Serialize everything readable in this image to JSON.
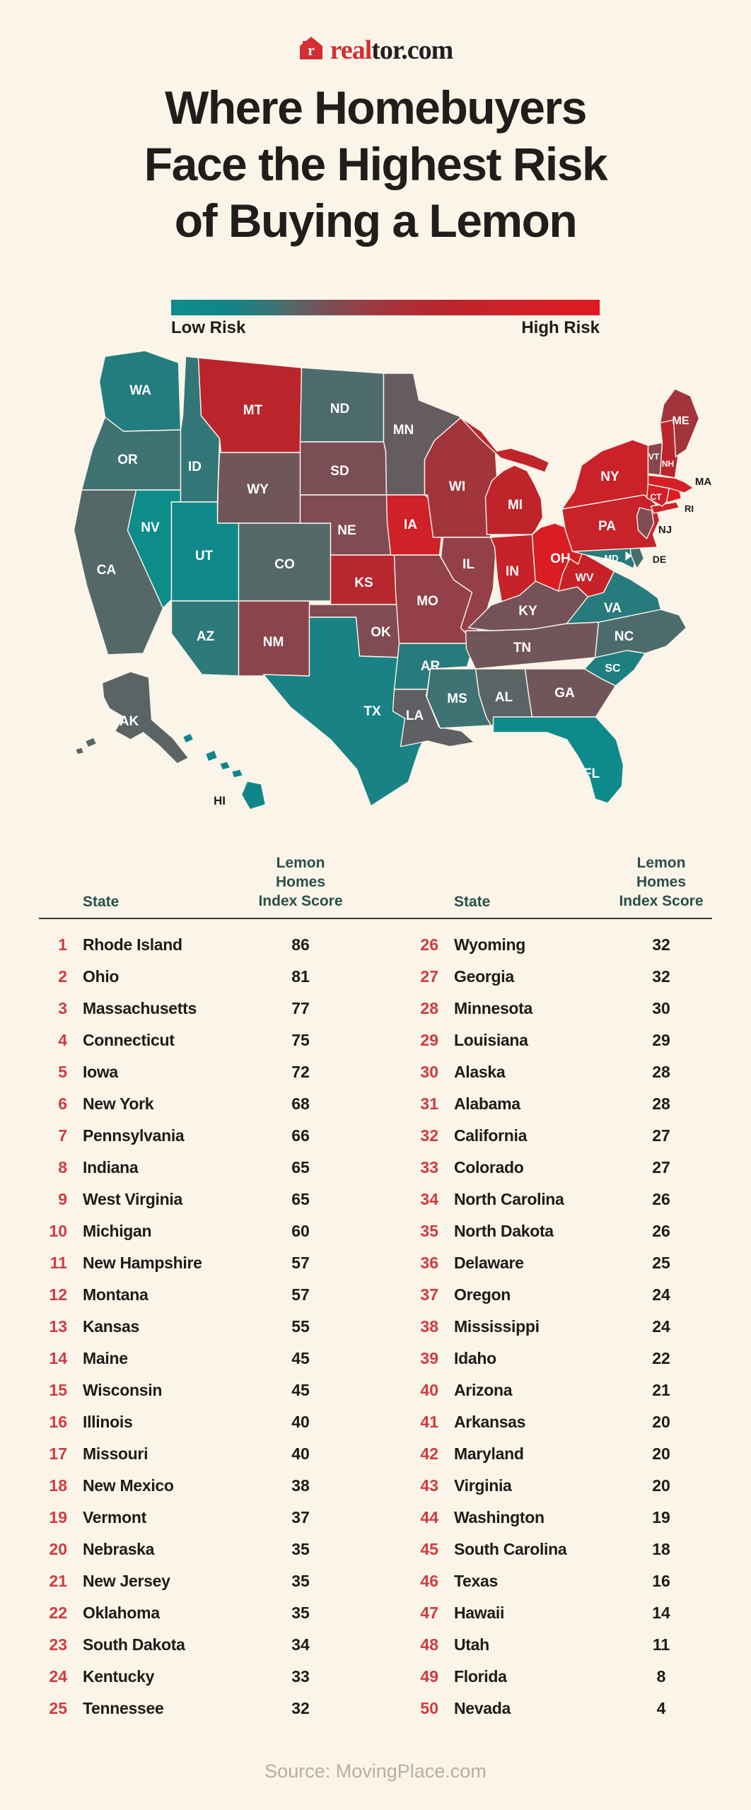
{
  "colors": {
    "background": "#FAF4E9",
    "title": "#201D1B",
    "logo_red": "#D42D33",
    "logo_dark": "#231F20",
    "rank_red": "#D13B40",
    "header_green": "#2B4F4A",
    "text_black": "#1E1B19",
    "divider": "#3B3734",
    "source_gray": "#B7AFA3",
    "map_label_white": "#FFFFFF"
  },
  "logo": {
    "icon": "realtor-house-icon",
    "brand_red_part": "real",
    "brand_dark_part": "tor.com"
  },
  "title": {
    "lines": [
      "Where Homebuyers",
      "Face the Highest Risk",
      "of Buying a Lemon"
    ]
  },
  "legend": {
    "low_label": "Low Risk",
    "high_label": "High Risk",
    "scale": [
      [
        4,
        "#0E8C8C"
      ],
      [
        14,
        "#10868A"
      ],
      [
        19,
        "#237D7E"
      ],
      [
        24,
        "#3E7273"
      ],
      [
        27,
        "#546868"
      ],
      [
        30,
        "#655C60"
      ],
      [
        34,
        "#7A4E55"
      ],
      [
        38,
        "#8C444C"
      ],
      [
        42,
        "#9A3B43"
      ],
      [
        47,
        "#A83138"
      ],
      [
        57,
        "#BA252C"
      ],
      [
        65,
        "#C7222A"
      ],
      [
        72,
        "#D02028"
      ],
      [
        79,
        "#D81D24"
      ],
      [
        86,
        "#DF1A21"
      ]
    ]
  },
  "map": {
    "states": [
      {
        "abbr": "WA",
        "name": "Washington",
        "score": 19
      },
      {
        "abbr": "OR",
        "name": "Oregon",
        "score": 24
      },
      {
        "abbr": "CA",
        "name": "California",
        "score": 27
      },
      {
        "abbr": "NV",
        "name": "Nevada",
        "score": 4
      },
      {
        "abbr": "ID",
        "name": "Idaho",
        "score": 22
      },
      {
        "abbr": "MT",
        "name": "Montana",
        "score": 57
      },
      {
        "abbr": "WY",
        "name": "Wyoming",
        "score": 32
      },
      {
        "abbr": "UT",
        "name": "Utah",
        "score": 11
      },
      {
        "abbr": "AZ",
        "name": "Arizona",
        "score": 21
      },
      {
        "abbr": "CO",
        "name": "Colorado",
        "score": 27
      },
      {
        "abbr": "NM",
        "name": "New Mexico",
        "score": 38
      },
      {
        "abbr": "ND",
        "name": "North Dakota",
        "score": 26
      },
      {
        "abbr": "SD",
        "name": "South Dakota",
        "score": 34
      },
      {
        "abbr": "NE",
        "name": "Nebraska",
        "score": 35
      },
      {
        "abbr": "KS",
        "name": "Kansas",
        "score": 55
      },
      {
        "abbr": "OK",
        "name": "Oklahoma",
        "score": 35
      },
      {
        "abbr": "TX",
        "name": "Texas",
        "score": 16
      },
      {
        "abbr": "MN",
        "name": "Minnesota",
        "score": 30
      },
      {
        "abbr": "IA",
        "name": "Iowa",
        "score": 72
      },
      {
        "abbr": "MO",
        "name": "Missouri",
        "score": 40
      },
      {
        "abbr": "AR",
        "name": "Arkansas",
        "score": 20
      },
      {
        "abbr": "LA",
        "name": "Louisiana",
        "score": 29
      },
      {
        "abbr": "WI",
        "name": "Wisconsin",
        "score": 45
      },
      {
        "abbr": "IL",
        "name": "Illinois",
        "score": 40
      },
      {
        "abbr": "IN",
        "name": "Indiana",
        "score": 65
      },
      {
        "abbr": "OH",
        "name": "Ohio",
        "score": 81
      },
      {
        "abbr": "MI",
        "name": "Michigan",
        "score": 60
      },
      {
        "abbr": "KY",
        "name": "Kentucky",
        "score": 33
      },
      {
        "abbr": "TN",
        "name": "Tennessee",
        "score": 32
      },
      {
        "abbr": "MS",
        "name": "Mississippi",
        "score": 24
      },
      {
        "abbr": "AL",
        "name": "Alabama",
        "score": 28
      },
      {
        "abbr": "GA",
        "name": "Georgia",
        "score": 32
      },
      {
        "abbr": "FL",
        "name": "Florida",
        "score": 8
      },
      {
        "abbr": "SC",
        "name": "South Carolina",
        "score": 18
      },
      {
        "abbr": "NC",
        "name": "North Carolina",
        "score": 26
      },
      {
        "abbr": "VA",
        "name": "Virginia",
        "score": 20
      },
      {
        "abbr": "WV",
        "name": "West Virginia",
        "score": 65
      },
      {
        "abbr": "MD",
        "name": "Maryland",
        "score": 20
      },
      {
        "abbr": "DE",
        "name": "Delaware",
        "score": 25
      },
      {
        "abbr": "PA",
        "name": "Pennsylvania",
        "score": 66
      },
      {
        "abbr": "NJ",
        "name": "New Jersey",
        "score": 35
      },
      {
        "abbr": "NY",
        "name": "New York",
        "score": 68
      },
      {
        "abbr": "CT",
        "name": "Connecticut",
        "score": 75
      },
      {
        "abbr": "RI",
        "name": "Rhode Island",
        "score": 86
      },
      {
        "abbr": "MA",
        "name": "Massachusetts",
        "score": 77
      },
      {
        "abbr": "VT",
        "name": "Vermont",
        "score": 37
      },
      {
        "abbr": "NH",
        "name": "New Hampshire",
        "score": 57
      },
      {
        "abbr": "ME",
        "name": "Maine",
        "score": 45
      },
      {
        "abbr": "AK",
        "name": "Alaska",
        "score": 28
      },
      {
        "abbr": "HI",
        "name": "Hawaii",
        "score": 14
      }
    ]
  },
  "table": {
    "headers": {
      "state": "State",
      "score_line1": "Lemon Homes",
      "score_line2": "Index Score"
    },
    "rows": [
      {
        "rank": 1,
        "state": "Rhode Island",
        "score": 86
      },
      {
        "rank": 2,
        "state": "Ohio",
        "score": 81
      },
      {
        "rank": 3,
        "state": "Massachusetts",
        "score": 77
      },
      {
        "rank": 4,
        "state": "Connecticut",
        "score": 75
      },
      {
        "rank": 5,
        "state": "Iowa",
        "score": 72
      },
      {
        "rank": 6,
        "state": "New York",
        "score": 68
      },
      {
        "rank": 7,
        "state": "Pennsylvania",
        "score": 66
      },
      {
        "rank": 8,
        "state": "Indiana",
        "score": 65
      },
      {
        "rank": 9,
        "state": "West Virginia",
        "score": 65
      },
      {
        "rank": 10,
        "state": "Michigan",
        "score": 60
      },
      {
        "rank": 11,
        "state": "New Hampshire",
        "score": 57
      },
      {
        "rank": 12,
        "state": "Montana",
        "score": 57
      },
      {
        "rank": 13,
        "state": "Kansas",
        "score": 55
      },
      {
        "rank": 14,
        "state": "Maine",
        "score": 45
      },
      {
        "rank": 15,
        "state": "Wisconsin",
        "score": 45
      },
      {
        "rank": 16,
        "state": "Illinois",
        "score": 40
      },
      {
        "rank": 17,
        "state": "Missouri",
        "score": 40
      },
      {
        "rank": 18,
        "state": "New Mexico",
        "score": 38
      },
      {
        "rank": 19,
        "state": "Vermont",
        "score": 37
      },
      {
        "rank": 20,
        "state": "Nebraska",
        "score": 35
      },
      {
        "rank": 21,
        "state": "New Jersey",
        "score": 35
      },
      {
        "rank": 22,
        "state": "Oklahoma",
        "score": 35
      },
      {
        "rank": 23,
        "state": "South Dakota",
        "score": 34
      },
      {
        "rank": 24,
        "state": "Kentucky",
        "score": 33
      },
      {
        "rank": 25,
        "state": "Tennessee",
        "score": 32
      },
      {
        "rank": 26,
        "state": "Wyoming",
        "score": 32
      },
      {
        "rank": 27,
        "state": "Georgia",
        "score": 32
      },
      {
        "rank": 28,
        "state": "Minnesota",
        "score": 30
      },
      {
        "rank": 29,
        "state": "Louisiana",
        "score": 29
      },
      {
        "rank": 30,
        "state": "Alaska",
        "score": 28
      },
      {
        "rank": 31,
        "state": "Alabama",
        "score": 28
      },
      {
        "rank": 32,
        "state": "California",
        "score": 27
      },
      {
        "rank": 33,
        "state": "Colorado",
        "score": 27
      },
      {
        "rank": 34,
        "state": "North Carolina",
        "score": 26
      },
      {
        "rank": 35,
        "state": "North Dakota",
        "score": 26
      },
      {
        "rank": 36,
        "state": "Delaware",
        "score": 25
      },
      {
        "rank": 37,
        "state": "Oregon",
        "score": 24
      },
      {
        "rank": 38,
        "state": "Mississippi",
        "score": 24
      },
      {
        "rank": 39,
        "state": "Idaho",
        "score": 22
      },
      {
        "rank": 40,
        "state": "Arizona",
        "score": 21
      },
      {
        "rank": 41,
        "state": "Arkansas",
        "score": 20
      },
      {
        "rank": 42,
        "state": "Maryland",
        "score": 20
      },
      {
        "rank": 43,
        "state": "Virginia",
        "score": 20
      },
      {
        "rank": 44,
        "state": "Washington",
        "score": 19
      },
      {
        "rank": 45,
        "state": "South Carolina",
        "score": 18
      },
      {
        "rank": 46,
        "state": "Texas",
        "score": 16
      },
      {
        "rank": 47,
        "state": "Hawaii",
        "score": 14
      },
      {
        "rank": 48,
        "state": "Utah",
        "score": 11
      },
      {
        "rank": 49,
        "state": "Florida",
        "score": 8
      },
      {
        "rank": 50,
        "state": "Nevada",
        "score": 4
      }
    ]
  },
  "footer": {
    "source": "Source: MovingPlace.com"
  },
  "chart_data": {
    "type": "heatmap",
    "subtype": "us-choropleth",
    "title": "Where Homebuyers Face the Highest Risk of Buying a Lemon",
    "metric": "Lemon Homes Index Score",
    "legend": {
      "low": "Low Risk",
      "high": "High Risk"
    },
    "value_range": [
      4,
      86
    ],
    "categories": [
      "Rhode Island",
      "Ohio",
      "Massachusetts",
      "Connecticut",
      "Iowa",
      "New York",
      "Pennsylvania",
      "Indiana",
      "West Virginia",
      "Michigan",
      "New Hampshire",
      "Montana",
      "Kansas",
      "Maine",
      "Wisconsin",
      "Illinois",
      "Missouri",
      "New Mexico",
      "Vermont",
      "Nebraska",
      "New Jersey",
      "Oklahoma",
      "South Dakota",
      "Kentucky",
      "Tennessee",
      "Wyoming",
      "Georgia",
      "Minnesota",
      "Louisiana",
      "Alaska",
      "Alabama",
      "California",
      "Colorado",
      "North Carolina",
      "North Dakota",
      "Delaware",
      "Oregon",
      "Mississippi",
      "Idaho",
      "Arizona",
      "Arkansas",
      "Maryland",
      "Virginia",
      "Washington",
      "South Carolina",
      "Texas",
      "Hawaii",
      "Utah",
      "Florida",
      "Nevada"
    ],
    "values": [
      86,
      81,
      77,
      75,
      72,
      68,
      66,
      65,
      65,
      60,
      57,
      57,
      55,
      45,
      45,
      40,
      40,
      38,
      37,
      35,
      35,
      35,
      34,
      33,
      32,
      32,
      32,
      30,
      29,
      28,
      28,
      27,
      27,
      26,
      26,
      25,
      24,
      24,
      22,
      21,
      20,
      20,
      20,
      19,
      18,
      16,
      14,
      11,
      8,
      4
    ],
    "source": "Source: MovingPlace.com"
  }
}
